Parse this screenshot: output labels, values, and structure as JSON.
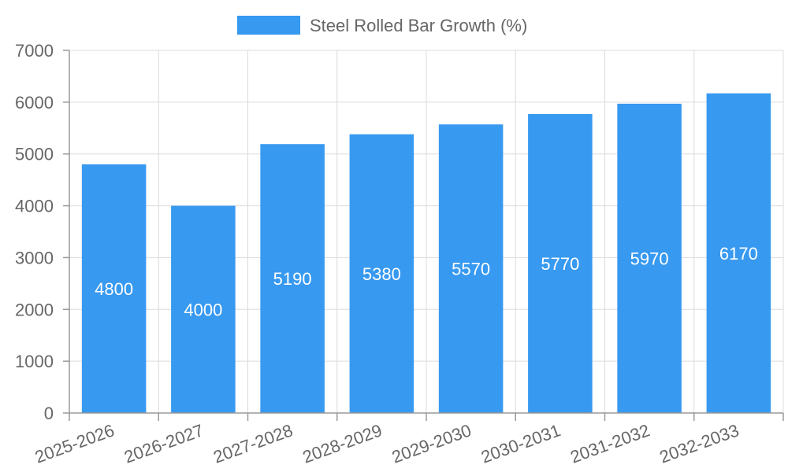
{
  "chart_data": {
    "type": "bar",
    "categories": [
      "2025-2026",
      "2026-2027",
      "2027-2028",
      "2028-2029",
      "2029-2030",
      "2030-2031",
      "2031-2032",
      "2032-2033"
    ],
    "series": [
      {
        "name": "Steel Rolled Bar Growth (%)",
        "values": [
          4800,
          4000,
          5190,
          5380,
          5570,
          5770,
          5970,
          6170
        ],
        "color": "#3799f0"
      }
    ],
    "ylim": [
      0,
      7000
    ],
    "yticks": [
      "0",
      "1000",
      "2000",
      "3000",
      "4000",
      "5000",
      "6000",
      "7000"
    ],
    "grid": true,
    "legend": "top-center",
    "data_labels": true
  }
}
